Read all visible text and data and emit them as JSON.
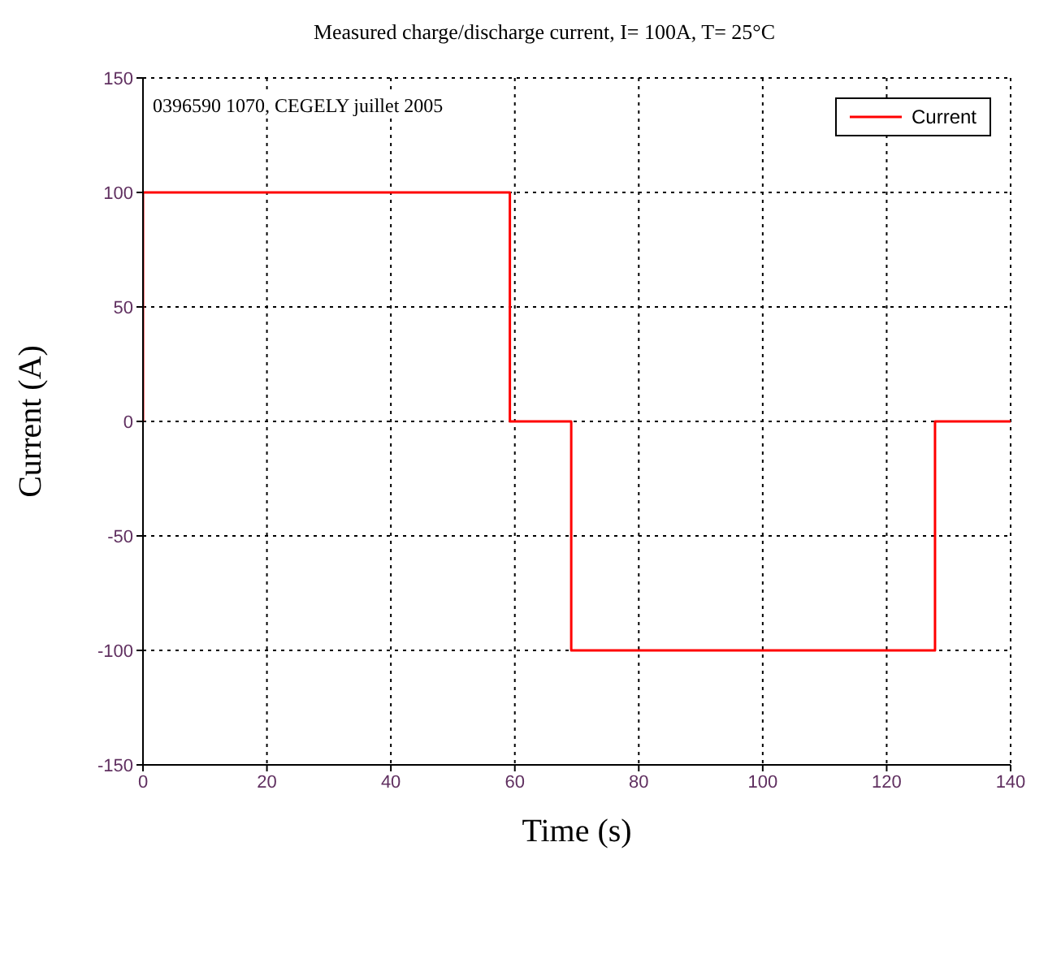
{
  "chart_data": {
    "type": "line",
    "title": "Measured charge/discharge current, I= 100A, T= 25°C",
    "xlabel": "Time (s)",
    "ylabel": "Current (A)",
    "annotations": [
      "0396590 1070, CEGELY juillet 2005"
    ],
    "series": [
      {
        "name": "Current",
        "color": "#ff0000",
        "x": [
          0,
          0,
          59.2,
          59.2,
          69.1,
          69.1,
          127.8,
          127.8,
          140
        ],
        "values": [
          0,
          100,
          100,
          0,
          0,
          -100,
          -100,
          0,
          0
        ]
      }
    ],
    "xlim": [
      0,
      140
    ],
    "xticks": [
      0,
      20,
      40,
      60,
      80,
      100,
      120,
      140
    ],
    "ylim": [
      -150,
      150
    ],
    "yticks": [
      -150,
      -100,
      -50,
      0,
      50,
      100,
      150
    ],
    "grid": true,
    "legend": "top right",
    "marker": "none",
    "line_style": "solid"
  }
}
